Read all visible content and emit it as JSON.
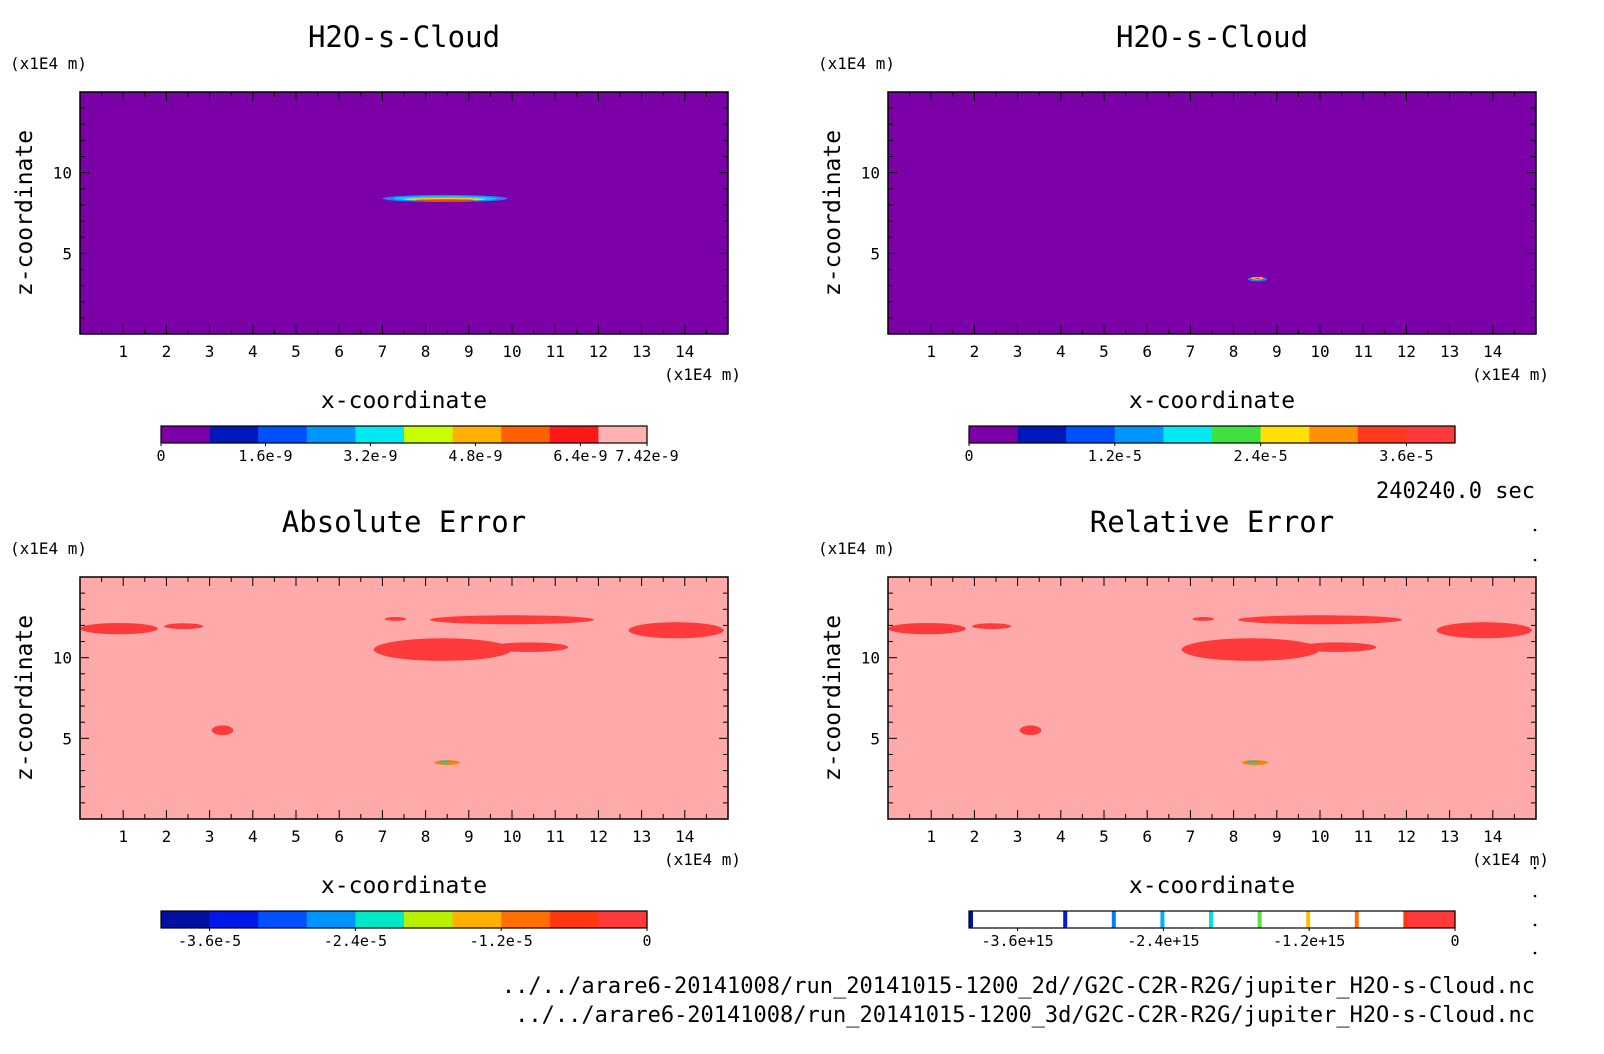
{
  "figure": {
    "time_label": "240240.0 sec",
    "file_paths": [
      "../../arare6-20141008/run_20141015-1200_2d//G2C-C2R-R2G/jupiter_H2O-s-Cloud.nc",
      "../../arare6-20141008/run_20141015-1200_3d/G2C-C2R-R2G/jupiter_H2O-s-Cloud.nc"
    ]
  },
  "chart_data": [
    {
      "type": "heatmap",
      "title": "H2O-s-Cloud",
      "xlabel": "x-coordinate",
      "ylabel": "z-coordinate",
      "x_unit": "(x1E4 m)",
      "y_unit": "(x1E4 m)",
      "xlim": [
        0,
        15
      ],
      "ylim": [
        0,
        15
      ],
      "x_ticks": [
        "1",
        "2",
        "3",
        "4",
        "5",
        "6",
        "7",
        "8",
        "9",
        "10",
        "11",
        "12",
        "13",
        "14"
      ],
      "y_ticks": [
        "5",
        "10"
      ],
      "background_color": "#7b00a8",
      "features": [
        {
          "x_center": 8.45,
          "z_center": 8.4,
          "half_width": 1.45,
          "half_height": 0.22,
          "color": "#2080ff"
        },
        {
          "x_center": 8.45,
          "z_center": 8.4,
          "half_width": 1.2,
          "half_height": 0.14,
          "color": "#00d8ff"
        },
        {
          "x_center": 8.45,
          "z_center": 8.35,
          "half_width": 0.95,
          "half_height": 0.09,
          "color": "#ffcc00"
        },
        {
          "x_center": 8.45,
          "z_center": 8.3,
          "half_width": 0.7,
          "half_height": 0.05,
          "color": "#ff3300"
        }
      ],
      "colorbar": {
        "colors": [
          "#7b00a8",
          "#0018b8",
          "#0050ff",
          "#0094ff",
          "#00e8f0",
          "#c8ff00",
          "#ffb000",
          "#ff6000",
          "#ff1818",
          "#ffb0b0"
        ],
        "labels": [
          "0",
          "1.6e-9",
          "3.2e-9",
          "4.8e-9",
          "6.4e-9",
          "7.42e-9"
        ],
        "label_positions": [
          0,
          0.215,
          0.431,
          0.647,
          0.863,
          1.0
        ],
        "min": 0,
        "max": 7.42e-09
      }
    },
    {
      "type": "heatmap",
      "title": "H2O-s-Cloud",
      "xlabel": "x-coordinate",
      "ylabel": "z-coordinate",
      "x_unit": "(x1E4 m)",
      "y_unit": "(x1E4 m)",
      "xlim": [
        0,
        15
      ],
      "ylim": [
        0,
        15
      ],
      "x_ticks": [
        "1",
        "2",
        "3",
        "4",
        "5",
        "6",
        "7",
        "8",
        "9",
        "10",
        "11",
        "12",
        "13",
        "14"
      ],
      "y_ticks": [
        "5",
        "10"
      ],
      "background_color": "#7b00a8",
      "features": [
        {
          "x_center": 8.55,
          "z_center": 3.4,
          "half_width": 0.22,
          "half_height": 0.14,
          "color": "#2080ff"
        },
        {
          "x_center": 8.55,
          "z_center": 3.45,
          "half_width": 0.14,
          "half_height": 0.08,
          "color": "#ffcc00"
        },
        {
          "x_center": 8.55,
          "z_center": 3.45,
          "half_width": 0.07,
          "half_height": 0.04,
          "color": "#ff3300"
        }
      ],
      "colorbar": {
        "colors": [
          "#7b00a8",
          "#0018b8",
          "#0050ff",
          "#0094ff",
          "#00e8f0",
          "#40e040",
          "#ffe000",
          "#ff9000",
          "#ff3a20",
          "#ff3a3a"
        ],
        "labels": [
          "0",
          "1.2e-5",
          "2.4e-5",
          "3.6e-5"
        ],
        "label_positions": [
          0,
          0.3,
          0.6,
          0.9
        ],
        "min": 0,
        "max": 4e-05
      }
    },
    {
      "type": "heatmap",
      "title": "Absolute Error",
      "xlabel": "x-coordinate",
      "ylabel": "z-coordinate",
      "x_unit": "(x1E4 m)",
      "y_unit": "(x1E4 m)",
      "xlim": [
        0,
        15
      ],
      "ylim": [
        0,
        15
      ],
      "x_ticks": [
        "1",
        "2",
        "3",
        "4",
        "5",
        "6",
        "7",
        "8",
        "9",
        "10",
        "11",
        "12",
        "13",
        "14"
      ],
      "y_ticks": [
        "5",
        "10"
      ],
      "background_color": "#ffaaaa",
      "features": [
        {
          "x_center": 0.9,
          "z_center": 11.8,
          "half_width": 0.9,
          "half_height": 0.35,
          "color": "#ff3a3a"
        },
        {
          "x_center": 2.4,
          "z_center": 11.95,
          "half_width": 0.45,
          "half_height": 0.18,
          "color": "#ff3a3a"
        },
        {
          "x_center": 8.4,
          "z_center": 10.5,
          "half_width": 1.6,
          "half_height": 0.7,
          "color": "#ff3a3a"
        },
        {
          "x_center": 10.4,
          "z_center": 10.65,
          "half_width": 0.9,
          "half_height": 0.3,
          "color": "#ff3a3a"
        },
        {
          "x_center": 7.3,
          "z_center": 12.4,
          "half_width": 0.25,
          "half_height": 0.12,
          "color": "#ff3a3a"
        },
        {
          "x_center": 10.0,
          "z_center": 12.35,
          "half_width": 1.9,
          "half_height": 0.28,
          "color": "#ff3a3a"
        },
        {
          "x_center": 13.8,
          "z_center": 11.7,
          "half_width": 1.1,
          "half_height": 0.5,
          "color": "#ff3a3a"
        },
        {
          "x_center": 3.3,
          "z_center": 5.5,
          "half_width": 0.25,
          "half_height": 0.3,
          "color": "#ff3a3a"
        },
        {
          "x_center": 8.5,
          "z_center": 3.5,
          "half_width": 0.3,
          "half_height": 0.15,
          "color": "#ff8000"
        },
        {
          "x_center": 8.45,
          "z_center": 3.55,
          "half_width": 0.15,
          "half_height": 0.07,
          "color": "#00d0c0"
        }
      ],
      "colorbar": {
        "colors": [
          "#0010a0",
          "#0018e8",
          "#0050ff",
          "#0094ff",
          "#00e8c8",
          "#b8f000",
          "#ffb000",
          "#ff7000",
          "#ff3810",
          "#ff3a3a"
        ],
        "labels": [
          "-3.6e-5",
          "-2.4e-5",
          "-1.2e-5",
          "0"
        ],
        "label_positions": [
          0.1,
          0.4,
          0.7,
          1.0
        ],
        "min": -4e-05,
        "max": 0
      }
    },
    {
      "type": "heatmap",
      "title": "Relative Error",
      "xlabel": "x-coordinate",
      "ylabel": "z-coordinate",
      "x_unit": "(x1E4 m)",
      "y_unit": "(x1E4 m)",
      "xlim": [
        0,
        15
      ],
      "ylim": [
        0,
        15
      ],
      "x_ticks": [
        "1",
        "2",
        "3",
        "4",
        "5",
        "6",
        "7",
        "8",
        "9",
        "10",
        "11",
        "12",
        "13",
        "14"
      ],
      "y_ticks": [
        "5",
        "10"
      ],
      "background_color": "#ffaaaa",
      "features": [
        {
          "x_center": 0.9,
          "z_center": 11.8,
          "half_width": 0.9,
          "half_height": 0.35,
          "color": "#ff3a3a"
        },
        {
          "x_center": 2.4,
          "z_center": 11.95,
          "half_width": 0.45,
          "half_height": 0.18,
          "color": "#ff3a3a"
        },
        {
          "x_center": 8.4,
          "z_center": 10.5,
          "half_width": 1.6,
          "half_height": 0.7,
          "color": "#ff3a3a"
        },
        {
          "x_center": 10.4,
          "z_center": 10.65,
          "half_width": 0.9,
          "half_height": 0.3,
          "color": "#ff3a3a"
        },
        {
          "x_center": 7.3,
          "z_center": 12.4,
          "half_width": 0.25,
          "half_height": 0.12,
          "color": "#ff3a3a"
        },
        {
          "x_center": 10.0,
          "z_center": 12.35,
          "half_width": 1.9,
          "half_height": 0.28,
          "color": "#ff3a3a"
        },
        {
          "x_center": 13.8,
          "z_center": 11.7,
          "half_width": 1.1,
          "half_height": 0.5,
          "color": "#ff3a3a"
        },
        {
          "x_center": 3.3,
          "z_center": 5.5,
          "half_width": 0.25,
          "half_height": 0.3,
          "color": "#ff3a3a"
        },
        {
          "x_center": 8.5,
          "z_center": 3.5,
          "half_width": 0.3,
          "half_height": 0.15,
          "color": "#ff8000"
        },
        {
          "x_center": 8.45,
          "z_center": 3.55,
          "half_width": 0.15,
          "half_height": 0.07,
          "color": "#00d0c0"
        }
      ],
      "colorbar": {
        "colors": [
          "#ffffff",
          "#ffffff",
          "#ffffff",
          "#ffffff",
          "#ffffff",
          "#ffffff",
          "#ffffff",
          "#ffffff",
          "#ffffff",
          "#ff3a3a"
        ],
        "stripe_colors": [
          "#0010a0",
          "#0018e8",
          "#0080ff",
          "#00b0ff",
          "#00e0e0",
          "#60e040",
          "#ffc000",
          "#ff7000",
          "#ff3810"
        ],
        "labels": [
          "-3.6e+15",
          "-2.4e+15",
          "-1.2e+15",
          "0"
        ],
        "label_positions": [
          0.1,
          0.4,
          0.7,
          1.0
        ],
        "min": -4000000000000000.0,
        "max": 0
      }
    }
  ]
}
